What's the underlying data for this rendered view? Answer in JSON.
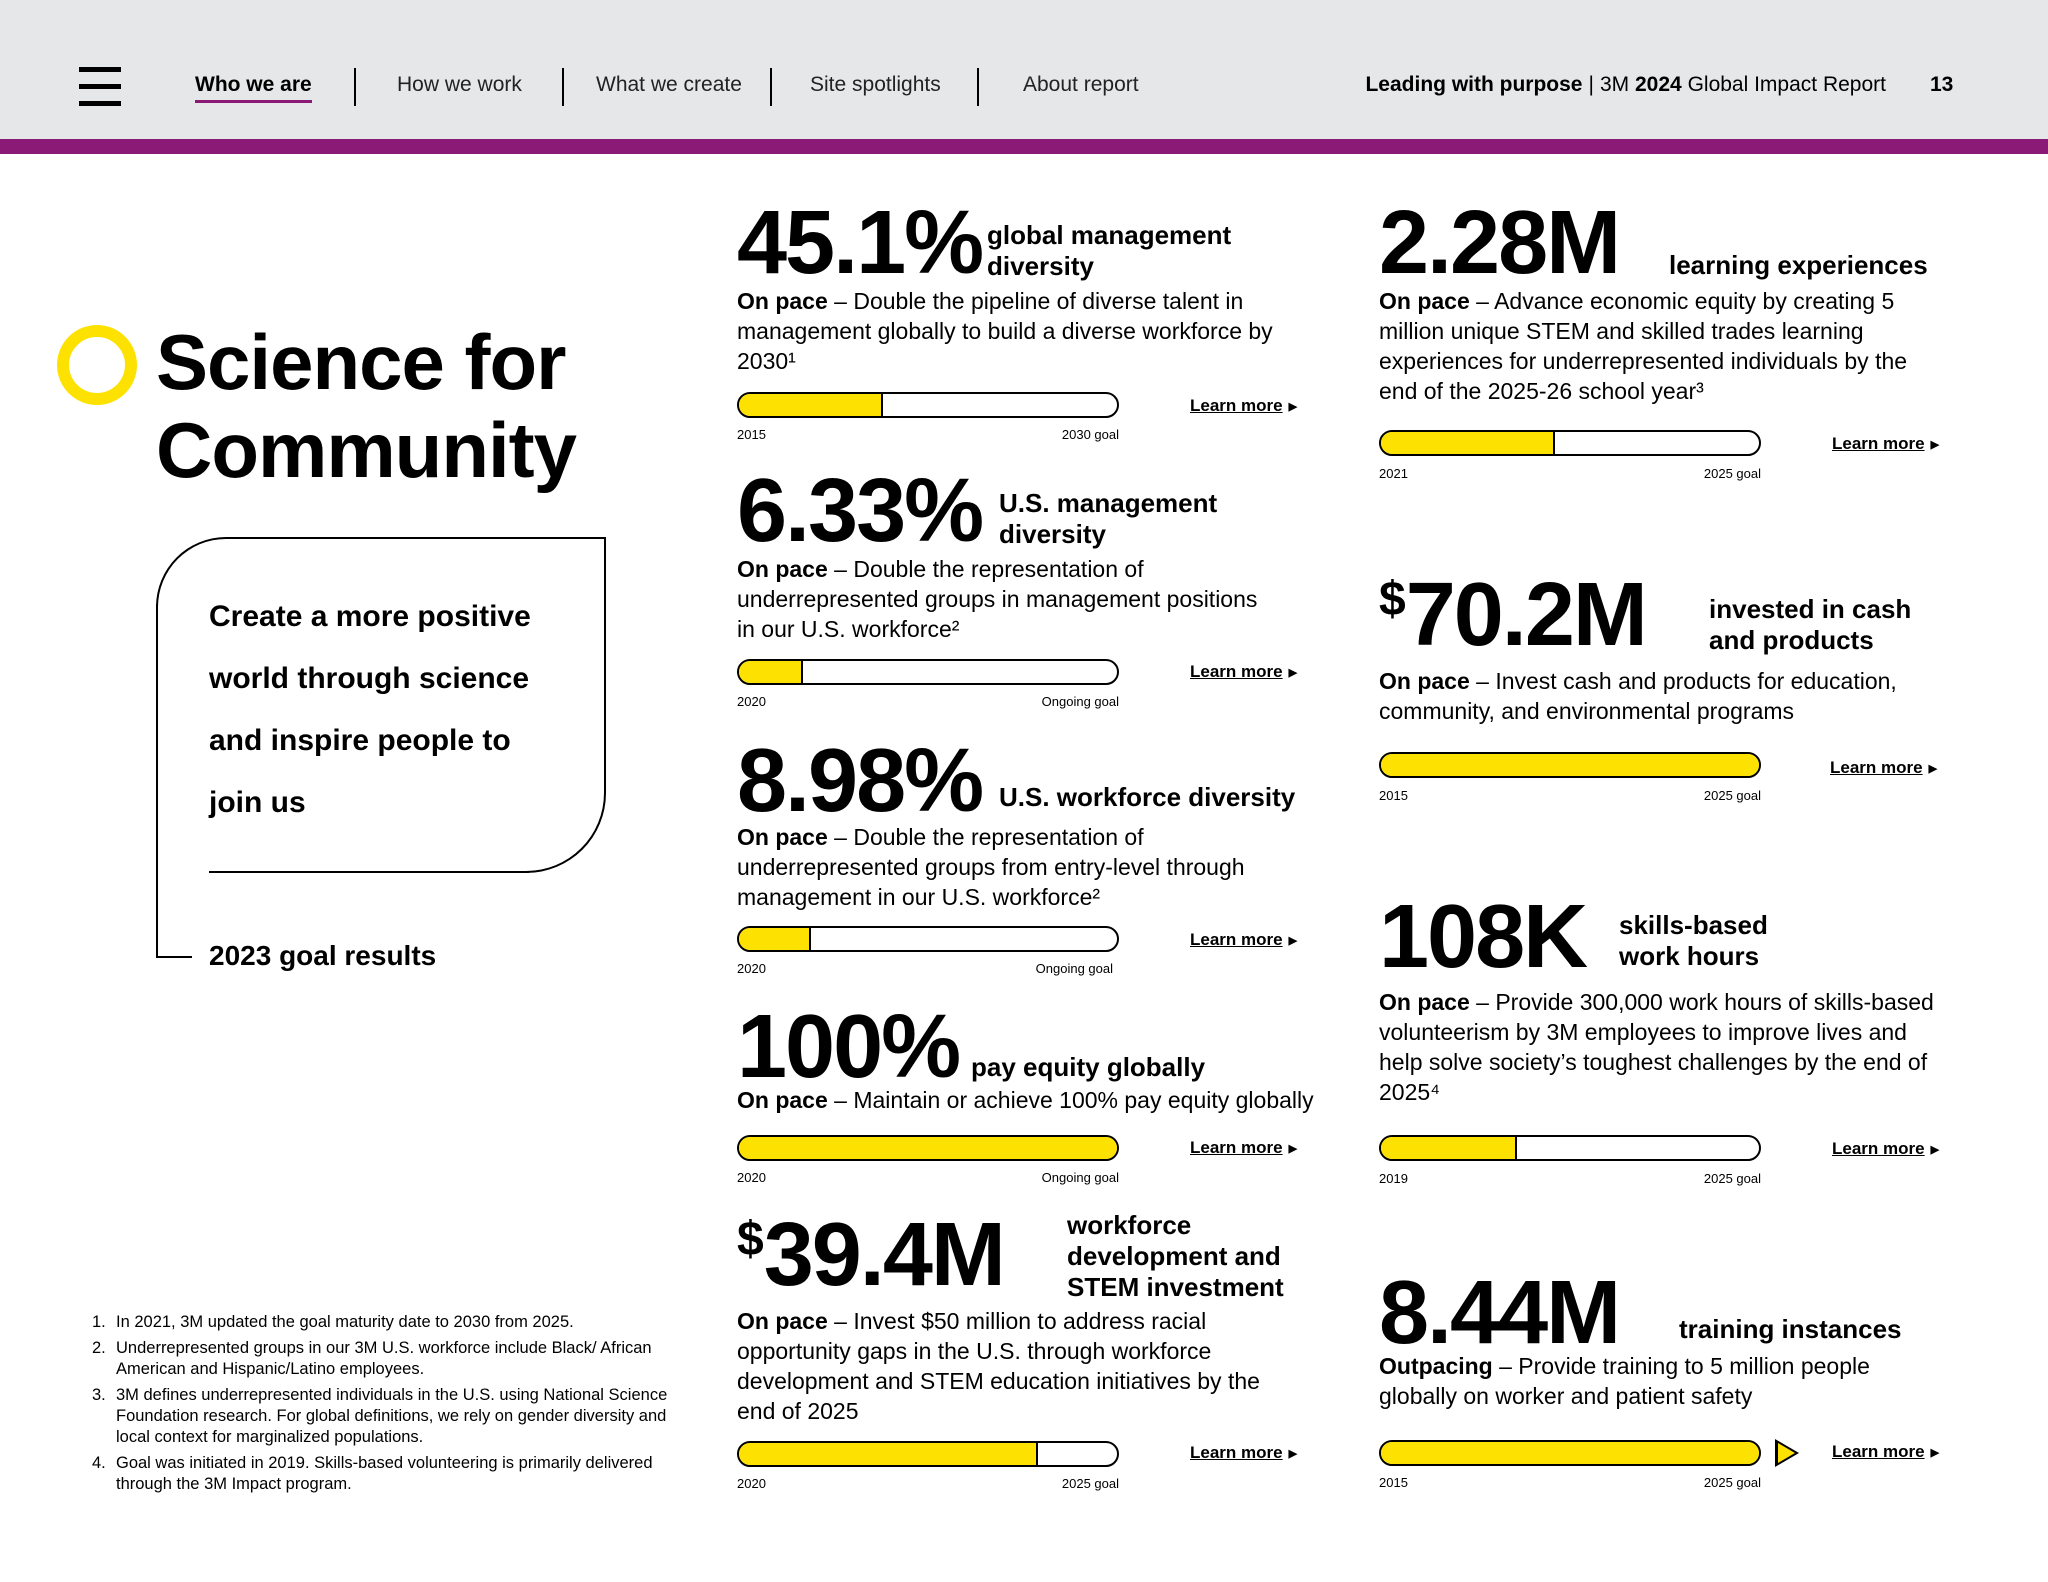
{
  "header": {
    "menu_icon": "hamburger-menu-icon",
    "nav": [
      {
        "label": "Who we are",
        "active": true
      },
      {
        "label": "How we work",
        "active": false
      },
      {
        "label": "What we create",
        "active": false
      },
      {
        "label": "Site spotlights",
        "active": false
      },
      {
        "label": "About report",
        "active": false
      }
    ],
    "report_title_bold": "Leading with purpose",
    "report_title_sep": "|",
    "report_title_brand": "3M",
    "report_title_year": "2024",
    "report_title_rest": "Global Impact Report",
    "page_number": "13"
  },
  "colors": {
    "accent_yellow": "#fde100",
    "brand_purple": "#8b1a76",
    "header_bg": "#e6e7e8"
  },
  "section": {
    "title_line1": "Science for",
    "title_line2": "Community",
    "goal_line1": "Create a more positive",
    "goal_line2": "world through science",
    "goal_line3": "and inspire people to",
    "goal_line4": "join us",
    "results_label": "2023 goal results"
  },
  "footnotes": [
    {
      "num": "1.",
      "text": "In 2021, 3M updated the goal maturity date to 2030 from 2025."
    },
    {
      "num": "2.",
      "text": "Underrepresented groups in our 3M U.S. workforce include Black/ African American and Hispanic/Latino employees."
    },
    {
      "num": "3.",
      "text": "3M defines underrepresented individuals in the U.S. using National Science Foundation research. For global definitions, we rely on gender diversity and local context for marginalized populations."
    },
    {
      "num": "4.",
      "text": "Goal was initiated in 2019. Skills-based volunteering is primarily delivered through the 3M Impact program."
    }
  ],
  "learn_more": "Learn more",
  "learn_more_arrow": "▶",
  "metrics": [
    {
      "value": "45.1%",
      "label1": "global management",
      "label2": "diversity",
      "status": "On pace",
      "desc": " – Double the pipeline of diverse talent in management globally to build a diverse workforce by 2030¹",
      "progress": 0.38,
      "start": "2015",
      "end": "2030 goal"
    },
    {
      "value": "6.33%",
      "label1": "U.S. management",
      "label2": "diversity",
      "status": "On pace",
      "desc": " – Double the representation of underrepresented groups in management positions in our U.S. workforce²",
      "progress": 0.17,
      "start": "2020",
      "end": "Ongoing goal"
    },
    {
      "value": "8.98%",
      "label1": "U.S. workforce diversity",
      "label2": "",
      "status": "On pace",
      "desc": " – Double the representation of underrepresented groups from entry-level through management in our U.S. workforce²",
      "progress": 0.19,
      "start": "2020",
      "end": "Ongoing goal"
    },
    {
      "value": "100%",
      "label1": "pay equity globally",
      "label2": "",
      "status": "On pace",
      "desc": " – Maintain or achieve 100% pay equity globally",
      "progress": 1.0,
      "start": "2020",
      "end": "Ongoing goal"
    },
    {
      "value_sup": "$",
      "value": "39.4M",
      "label1": "workforce",
      "label2": "development and",
      "label3": "STEM investment",
      "status": "On pace",
      "desc": " – Invest $50 million to address racial opportunity gaps in the U.S. through workforce development and STEM education initiatives by the end of 2025",
      "progress": 0.79,
      "start": "2020",
      "end": "2025 goal"
    },
    {
      "value": "2.28M",
      "label1": "learning experiences",
      "label2": "",
      "status": "On pace",
      "desc": " – Advance economic equity by creating 5 million unique STEM and skilled trades learning experiences for underrepresented individuals by the end of the 2025-26 school year³",
      "progress": 0.46,
      "start": "2021",
      "end": "2025 goal"
    },
    {
      "value_sup": "$",
      "value": "70.2M",
      "label1": "invested in cash",
      "label2": "and products",
      "status": "On pace",
      "desc": " – Invest cash and products for education, community, and environmental programs",
      "progress": 1.0,
      "start": "2015",
      "end": "2025 goal"
    },
    {
      "value": "108K",
      "label1": "skills-based",
      "label2": "work hours",
      "status": "On pace",
      "desc": " – Provide 300,000 work hours of skills-based volunteerism by 3M employees to improve lives and help solve society’s toughest challenges by the end of 2025⁴",
      "progress": 0.36,
      "start": "2019",
      "end": "2025 goal"
    },
    {
      "value": "8.44M",
      "label1": "training instances",
      "label2": "",
      "status": "Outpacing",
      "desc": " – Provide training to 5 million people globally on worker and patient safety",
      "progress": 1.0,
      "start": "2015",
      "end": "2025 goal",
      "exceeds_icon": "exceeds-arrow-icon"
    }
  ]
}
